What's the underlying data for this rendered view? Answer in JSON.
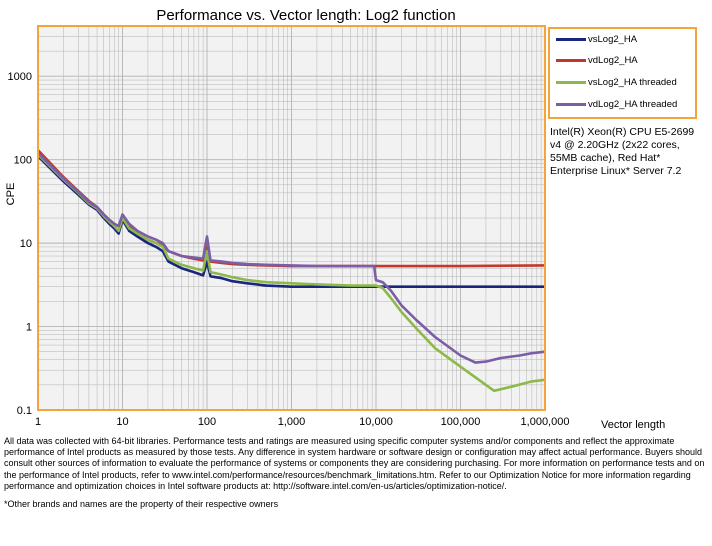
{
  "chart_data": {
    "type": "line",
    "title": "Performance vs. Vector length: Log2 function",
    "xlabel": "Vector length",
    "ylabel": "CPE",
    "x_scale": "log",
    "y_scale": "log",
    "xlim": [
      1,
      1000000
    ],
    "ylim": [
      0.1,
      4000
    ],
    "grid": true,
    "legend_position": "top-right",
    "x_ticks": [
      {
        "value": 1,
        "label": "1"
      },
      {
        "value": 10,
        "label": "10"
      },
      {
        "value": 100,
        "label": "100"
      },
      {
        "value": 1000,
        "label": "1,000"
      },
      {
        "value": 10000,
        "label": "10,000"
      },
      {
        "value": 100000,
        "label": "100,000"
      },
      {
        "value": 1000000,
        "label": "1,000,000"
      }
    ],
    "y_ticks": [
      {
        "value": 0.1,
        "label": "0.1"
      },
      {
        "value": 1,
        "label": "1"
      },
      {
        "value": 10,
        "label": "10"
      },
      {
        "value": 100,
        "label": "100"
      },
      {
        "value": 1000,
        "label": "1000"
      }
    ],
    "series": [
      {
        "name": "vsLog2_HA",
        "color": "#1a2580",
        "points": [
          [
            1,
            110
          ],
          [
            2,
            55
          ],
          [
            3,
            38
          ],
          [
            4,
            29
          ],
          [
            5,
            25
          ],
          [
            6,
            20
          ],
          [
            7,
            17
          ],
          [
            8,
            15
          ],
          [
            9,
            13
          ],
          [
            10,
            19
          ],
          [
            12,
            14
          ],
          [
            15,
            12
          ],
          [
            20,
            10
          ],
          [
            25,
            9
          ],
          [
            30,
            8
          ],
          [
            35,
            6
          ],
          [
            50,
            5
          ],
          [
            70,
            4.5
          ],
          [
            90,
            4.1
          ],
          [
            100,
            6
          ],
          [
            110,
            4
          ],
          [
            150,
            3.8
          ],
          [
            200,
            3.5
          ],
          [
            300,
            3.3
          ],
          [
            500,
            3.1
          ],
          [
            1000,
            3.0
          ],
          [
            2000,
            3.0
          ],
          [
            5000,
            3.0
          ],
          [
            10000,
            3.0
          ],
          [
            12000,
            3.0
          ],
          [
            100000,
            3.0
          ],
          [
            1000000,
            3.0
          ]
        ]
      },
      {
        "name": "vdLog2_HA",
        "color": "#c0392b",
        "points": [
          [
            1,
            130
          ],
          [
            2,
            62
          ],
          [
            3,
            42
          ],
          [
            4,
            32
          ],
          [
            5,
            27
          ],
          [
            6,
            22
          ],
          [
            7,
            19
          ],
          [
            8,
            17
          ],
          [
            9,
            16
          ],
          [
            10,
            20
          ],
          [
            12,
            16
          ],
          [
            15,
            13
          ],
          [
            20,
            11
          ],
          [
            25,
            10
          ],
          [
            30,
            9.5
          ],
          [
            35,
            8
          ],
          [
            50,
            7
          ],
          [
            70,
            6.5
          ],
          [
            90,
            6.2
          ],
          [
            100,
            9
          ],
          [
            110,
            6
          ],
          [
            150,
            5.8
          ],
          [
            200,
            5.6
          ],
          [
            300,
            5.5
          ],
          [
            500,
            5.4
          ],
          [
            1000,
            5.3
          ],
          [
            2000,
            5.3
          ],
          [
            5000,
            5.3
          ],
          [
            10000,
            5.3
          ],
          [
            100000,
            5.3
          ],
          [
            1000000,
            5.4
          ]
        ]
      },
      {
        "name": "vsLog2_HA threaded",
        "color": "#8db84a",
        "points": [
          [
            1,
            115
          ],
          [
            2,
            58
          ],
          [
            3,
            40
          ],
          [
            4,
            30
          ],
          [
            5,
            26
          ],
          [
            6,
            21
          ],
          [
            7,
            18
          ],
          [
            8,
            16
          ],
          [
            9,
            14
          ],
          [
            10,
            20
          ],
          [
            12,
            15
          ],
          [
            15,
            13
          ],
          [
            20,
            11
          ],
          [
            25,
            10
          ],
          [
            30,
            9
          ],
          [
            35,
            6.5
          ],
          [
            50,
            5.5
          ],
          [
            70,
            5
          ],
          [
            90,
            4.7
          ],
          [
            100,
            8
          ],
          [
            110,
            4.5
          ],
          [
            150,
            4.2
          ],
          [
            200,
            3.9
          ],
          [
            300,
            3.6
          ],
          [
            500,
            3.4
          ],
          [
            1000,
            3.3
          ],
          [
            2000,
            3.2
          ],
          [
            5000,
            3.1
          ],
          [
            10000,
            3.1
          ],
          [
            12000,
            2.9
          ],
          [
            15000,
            2.2
          ],
          [
            20000,
            1.5
          ],
          [
            30000,
            0.95
          ],
          [
            50000,
            0.55
          ],
          [
            100000,
            0.33
          ],
          [
            200000,
            0.2
          ],
          [
            250000,
            0.17
          ],
          [
            400000,
            0.19
          ],
          [
            700000,
            0.22
          ],
          [
            1000000,
            0.23
          ]
        ]
      },
      {
        "name": "vdLog2_HA threaded",
        "color": "#7b5ea7",
        "points": [
          [
            1,
            120
          ],
          [
            2,
            60
          ],
          [
            3,
            41
          ],
          [
            4,
            31
          ],
          [
            5,
            27
          ],
          [
            6,
            22
          ],
          [
            7,
            19
          ],
          [
            8,
            17
          ],
          [
            9,
            16
          ],
          [
            10,
            22
          ],
          [
            12,
            17
          ],
          [
            15,
            14
          ],
          [
            20,
            12
          ],
          [
            25,
            11
          ],
          [
            30,
            10
          ],
          [
            35,
            8
          ],
          [
            50,
            7
          ],
          [
            70,
            6.7
          ],
          [
            90,
            6.5
          ],
          [
            100,
            12
          ],
          [
            110,
            6.2
          ],
          [
            150,
            6
          ],
          [
            200,
            5.8
          ],
          [
            300,
            5.6
          ],
          [
            500,
            5.5
          ],
          [
            1000,
            5.4
          ],
          [
            2000,
            5.3
          ],
          [
            5000,
            5.3
          ],
          [
            9500,
            5.3
          ],
          [
            10000,
            3.6
          ],
          [
            12000,
            3.4
          ],
          [
            15000,
            2.7
          ],
          [
            20000,
            1.8
          ],
          [
            30000,
            1.2
          ],
          [
            50000,
            0.75
          ],
          [
            100000,
            0.45
          ],
          [
            150000,
            0.37
          ],
          [
            200000,
            0.38
          ],
          [
            300000,
            0.42
          ],
          [
            500000,
            0.45
          ],
          [
            700000,
            0.48
          ],
          [
            1000000,
            0.5
          ]
        ]
      }
    ]
  },
  "cpu_info": "Intel(R) Xeon(R) CPU E5-2699 v4 @ 2.20GHz (2x22 cores, 55MB cache), Red Hat* Enterprise Linux* Server 7.2",
  "footer": {
    "disclaimer": "All data was collected with 64-bit libraries. Performance tests and ratings are measured using specific computer systems and/or components and reflect the approximate performance of Intel products as measured by those tests. Any difference in system hardware or software design or configuration may affect actual performance. Buyers should consult other sources of information to evaluate the performance of systems or components they are considering purchasing. For more information on performance tests and on the performance of Intel products, refer to www.intel.com/performance/resources/benchmark_limitations.htm. Refer to our Optimization Notice for more information regarding performance and optimization choices in Intel software products at: http://software.intel.com/en-us/articles/optimization-notice/.",
    "trademark": "*Other brands and names are the property of their respective owners"
  },
  "colors": {
    "plot_background": "#f2f2f2",
    "plot_border": "#f5a43c",
    "grid": "#b3b3b3"
  }
}
